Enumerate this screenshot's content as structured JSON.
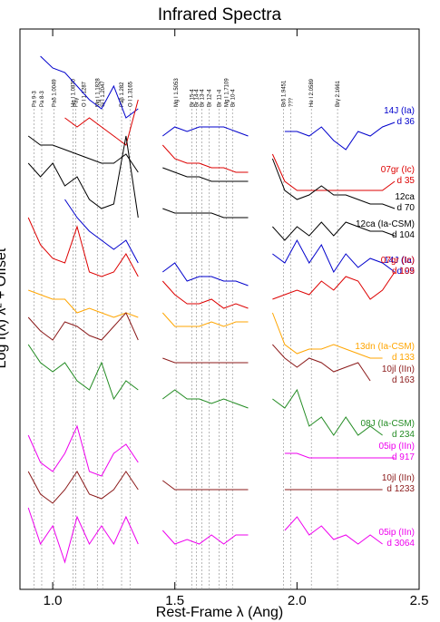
{
  "chart_data": {
    "type": "line",
    "title": "Infrared Spectra",
    "xlabel": "Rest-Frame λ (Ang)",
    "ylabel": "Log f(λ) λ² + Offset",
    "xlim": [
      0.866,
      2.5
    ],
    "xticks": [
      {
        "value": 1,
        "label": "1.0"
      },
      1.5,
      {
        "value": 2,
        "label": "2.0"
      },
      2.5
    ],
    "ylim": [
      0,
      618
    ],
    "x": [
      0.9,
      0.95,
      1.0,
      1.05,
      1.1,
      1.15,
      1.2,
      1.25,
      1.3,
      1.35,
      1.4,
      1.45,
      1.5,
      1.55,
      1.6,
      1.65,
      1.7,
      1.75,
      1.8,
      1.85,
      1.9,
      1.95,
      2.0,
      2.05,
      2.1,
      2.15,
      2.2,
      2.25,
      2.3,
      2.35,
      2.4
    ],
    "lines": [
      {
        "label": "Pa 9-3",
        "x": 0.923
      },
      {
        "label": "Pa 8-3",
        "x": 0.955
      },
      {
        "label": "Paδ 1.0049",
        "x": 1.0049
      },
      {
        "label": "He I 1.0830",
        "x": 1.083
      },
      {
        "label": "Paγ",
        "x": 1.0941
      },
      {
        "label": "O I 1.1287",
        "x": 1.1287
      },
      {
        "label": "Mg I 1.1828",
        "x": 1.1828
      },
      {
        "label": "Si I 1.2047",
        "x": 1.2047
      },
      {
        "label": "Paβ 1.282",
        "x": 1.282
      },
      {
        "label": "O I 1.3165",
        "x": 1.3165
      },
      {
        "label": "Mg I 1.5053",
        "x": 1.5053
      },
      {
        "label": "Br 15-4",
        "x": 1.57
      },
      {
        "label": "Br 14-4",
        "x": 1.588
      },
      {
        "label": "Br 13-4",
        "x": 1.611
      },
      {
        "label": "Br 12-4",
        "x": 1.641
      },
      {
        "label": "Br 11-4",
        "x": 1.681
      },
      {
        "label": "Mg I 1.7109",
        "x": 1.7109
      },
      {
        "label": "Br 10-4",
        "x": 1.736
      },
      {
        "label": "Brδ 1.9451",
        "x": 1.9451
      },
      {
        "label": "???",
        "x": 1.975
      },
      {
        "label": "He I 2.0589",
        "x": 2.0589
      },
      {
        "label": "Brγ 2.1661",
        "x": 2.1661
      }
    ],
    "series": [
      {
        "name": "14J (Ia)",
        "epoch": "d 36",
        "color": "#0000cc",
        "values": [
          null,
          588,
          575,
          570,
          555,
          540,
          530,
          555,
          520,
          530,
          null,
          500,
          510,
          505,
          510,
          510,
          510,
          505,
          500,
          null,
          null,
          505,
          505,
          500,
          510,
          495,
          485,
          505,
          500,
          510,
          515
        ]
      },
      {
        "name": "07gr (Ic)",
        "epoch": "d 35",
        "color": "#dd0000",
        "values": [
          null,
          null,
          null,
          520,
          510,
          520,
          510,
          500,
          490,
          540,
          null,
          490,
          475,
          470,
          470,
          465,
          465,
          460,
          460,
          null,
          480,
          450,
          440,
          440,
          440,
          440,
          440,
          440,
          440,
          440,
          450
        ]
      },
      {
        "name": "12ca",
        "epoch": "d 70",
        "color": "#000000",
        "values": [
          500,
          490,
          490,
          485,
          480,
          475,
          470,
          470,
          480,
          460,
          null,
          465,
          460,
          455,
          455,
          450,
          450,
          450,
          450,
          null,
          475,
          440,
          430,
          435,
          445,
          435,
          435,
          430,
          425,
          425,
          420
        ]
      },
      {
        "name": "12ca (Ia-CSM)",
        "epoch": "d 104",
        "color": "#000000",
        "values": [
          470,
          455,
          470,
          445,
          455,
          430,
          420,
          425,
          500,
          410,
          null,
          420,
          415,
          415,
          415,
          415,
          410,
          410,
          410,
          null,
          400,
          385,
          400,
          390,
          405,
          390,
          405,
          400,
          395,
          395,
          390
        ]
      },
      {
        "name": "14J (Ia)",
        "epoch": "d 95",
        "color": "#0000cc",
        "values": [
          null,
          null,
          null,
          430,
          410,
          395,
          385,
          375,
          385,
          360,
          null,
          350,
          360,
          340,
          345,
          345,
          340,
          340,
          335,
          null,
          370,
          360,
          385,
          360,
          380,
          350,
          370,
          355,
          365,
          360,
          350
        ]
      },
      {
        "name": "07gr (Ic)",
        "epoch": "d 109",
        "color": "#dd0000",
        "values": [
          410,
          380,
          365,
          360,
          400,
          350,
          345,
          350,
          370,
          345,
          null,
          340,
          325,
          315,
          315,
          320,
          310,
          315,
          310,
          null,
          320,
          325,
          330,
          325,
          340,
          330,
          345,
          340,
          320,
          330,
          350
        ]
      },
      {
        "name": "13dn (Ia-CSM)",
        "epoch": "d 133",
        "color": "#ffa500",
        "values": [
          330,
          325,
          320,
          320,
          305,
          310,
          305,
          300,
          305,
          300,
          null,
          305,
          290,
          290,
          290,
          295,
          290,
          295,
          295,
          null,
          305,
          270,
          260,
          265,
          265,
          270,
          265,
          260,
          255,
          255,
          null
        ]
      },
      {
        "name": "10jl (IIn)",
        "epoch": "d 163",
        "color": "#8b1a1a",
        "values": [
          300,
          285,
          275,
          295,
          290,
          280,
          275,
          290,
          305,
          275,
          null,
          255,
          250,
          250,
          250,
          250,
          250,
          250,
          250,
          null,
          270,
          255,
          245,
          255,
          250,
          240,
          245,
          250,
          230,
          null,
          null
        ]
      },
      {
        "name": "08J (Ia-CSM)",
        "epoch": "d 234",
        "color": "#228b22",
        "values": [
          270,
          250,
          240,
          250,
          230,
          220,
          250,
          210,
          230,
          220,
          null,
          210,
          220,
          210,
          210,
          205,
          210,
          205,
          200,
          null,
          210,
          200,
          220,
          180,
          190,
          170,
          190,
          170,
          180,
          170,
          null
        ]
      },
      {
        "name": "05ip (IIn)",
        "epoch": "d 917",
        "color": "#ee00ee",
        "values": [
          170,
          140,
          130,
          150,
          180,
          130,
          125,
          150,
          160,
          140,
          null,
          null,
          null,
          null,
          null,
          null,
          null,
          null,
          null,
          null,
          null,
          150,
          150,
          145,
          145,
          145,
          145,
          145,
          145,
          145,
          145
        ]
      },
      {
        "name": "10jl (IIn)",
        "epoch": "d 1233",
        "color": "#8b1a1a",
        "values": [
          130,
          105,
          95,
          110,
          130,
          105,
          100,
          110,
          130,
          110,
          null,
          120,
          110,
          110,
          110,
          110,
          110,
          110,
          110,
          null,
          null,
          110,
          110,
          110,
          110,
          110,
          110,
          110,
          110,
          110,
          null
        ]
      },
      {
        "name": "05ip (IIn)",
        "epoch": "d 3064",
        "color": "#ee00ee",
        "values": [
          90,
          50,
          70,
          30,
          80,
          50,
          70,
          50,
          80,
          50,
          null,
          65,
          50,
          55,
          50,
          60,
          50,
          60,
          60,
          null,
          null,
          65,
          80,
          60,
          70,
          55,
          60,
          50,
          60,
          50,
          null
        ]
      }
    ]
  }
}
